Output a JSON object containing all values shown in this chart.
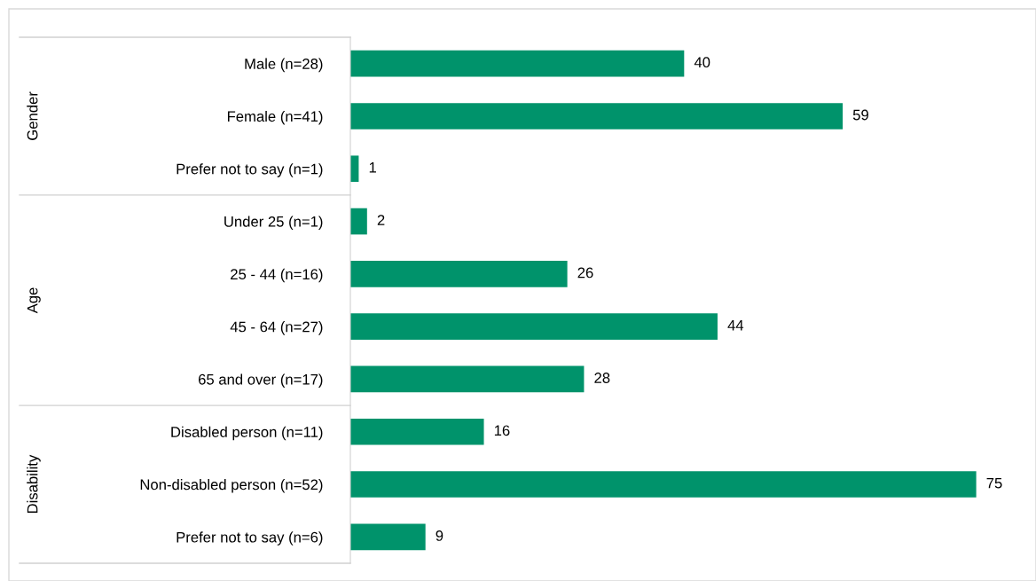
{
  "chart_data": {
    "type": "bar",
    "orientation": "horizontal",
    "data_labels": true,
    "grid": false,
    "legend": false,
    "tick_labels": "y",
    "categories": [
      "Male (n=28)",
      "Female (n=41)",
      "Prefer not to say (n=1)",
      "Under 25 (n=1)",
      "25 - 44 (n=16)",
      "45 - 64 (n=27)",
      "65 and over (n=17)",
      "Disabled person (n=11)",
      "Non-disabled person (n=52)",
      "Prefer not to say (n=6)"
    ],
    "series": [
      {
        "color": "#00936b",
        "values": [
          40,
          59,
          1,
          2,
          26,
          44,
          28,
          16,
          75,
          9
        ]
      }
    ],
    "annotations": [
      "Gender",
      "Age",
      "Disability"
    ]
  }
}
